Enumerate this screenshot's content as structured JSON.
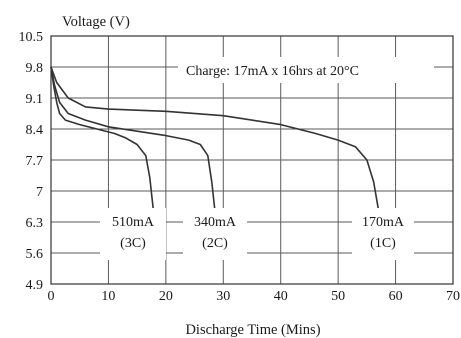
{
  "chart_data": {
    "type": "line",
    "ylabel": "Voltage (V)",
    "xlabel": "Discharge Time (Mins)",
    "annotation": "Charge: 17mA x 16hrs at 20°C",
    "xlim": [
      0,
      70
    ],
    "ylim": [
      4.9,
      10.5
    ],
    "x_ticks": [
      "0",
      "10",
      "20",
      "30",
      "40",
      "50",
      "60",
      "70"
    ],
    "y_ticks": [
      "4.9",
      "5.6",
      "6.3",
      "7",
      "7.7",
      "8.4",
      "9.1",
      "9.8",
      "10.5"
    ],
    "y_tick_values": [
      4.9,
      5.6,
      6.3,
      7.0,
      7.7,
      8.4,
      9.1,
      9.8,
      10.5
    ],
    "grid": true,
    "series": [
      {
        "name": "510mA",
        "rate": "(3C)",
        "points": [
          [
            0,
            9.8
          ],
          [
            0.5,
            9.35
          ],
          [
            1,
            9.0
          ],
          [
            1.5,
            8.75
          ],
          [
            2.5,
            8.6
          ],
          [
            5,
            8.5
          ],
          [
            8,
            8.4
          ],
          [
            11,
            8.3
          ],
          [
            13,
            8.2
          ],
          [
            15,
            8.05
          ],
          [
            16.5,
            7.8
          ],
          [
            17.2,
            7.3
          ],
          [
            17.8,
            6.6
          ]
        ]
      },
      {
        "name": "340mA",
        "rate": "(2C)",
        "points": [
          [
            0,
            9.8
          ],
          [
            0.6,
            9.4
          ],
          [
            1.5,
            9.0
          ],
          [
            3,
            8.75
          ],
          [
            6,
            8.6
          ],
          [
            10,
            8.45
          ],
          [
            15,
            8.35
          ],
          [
            20,
            8.25
          ],
          [
            24,
            8.15
          ],
          [
            26,
            8.05
          ],
          [
            27.3,
            7.8
          ],
          [
            28,
            7.2
          ],
          [
            28.5,
            6.6
          ]
        ]
      },
      {
        "name": "170mA",
        "rate": "(1C)",
        "points": [
          [
            0,
            9.8
          ],
          [
            1,
            9.45
          ],
          [
            3,
            9.1
          ],
          [
            6,
            8.9
          ],
          [
            10,
            8.85
          ],
          [
            20,
            8.8
          ],
          [
            30,
            8.7
          ],
          [
            40,
            8.5
          ],
          [
            46,
            8.3
          ],
          [
            50,
            8.15
          ],
          [
            53,
            8.0
          ],
          [
            55,
            7.7
          ],
          [
            56.2,
            7.2
          ],
          [
            57,
            6.6
          ]
        ]
      }
    ]
  }
}
